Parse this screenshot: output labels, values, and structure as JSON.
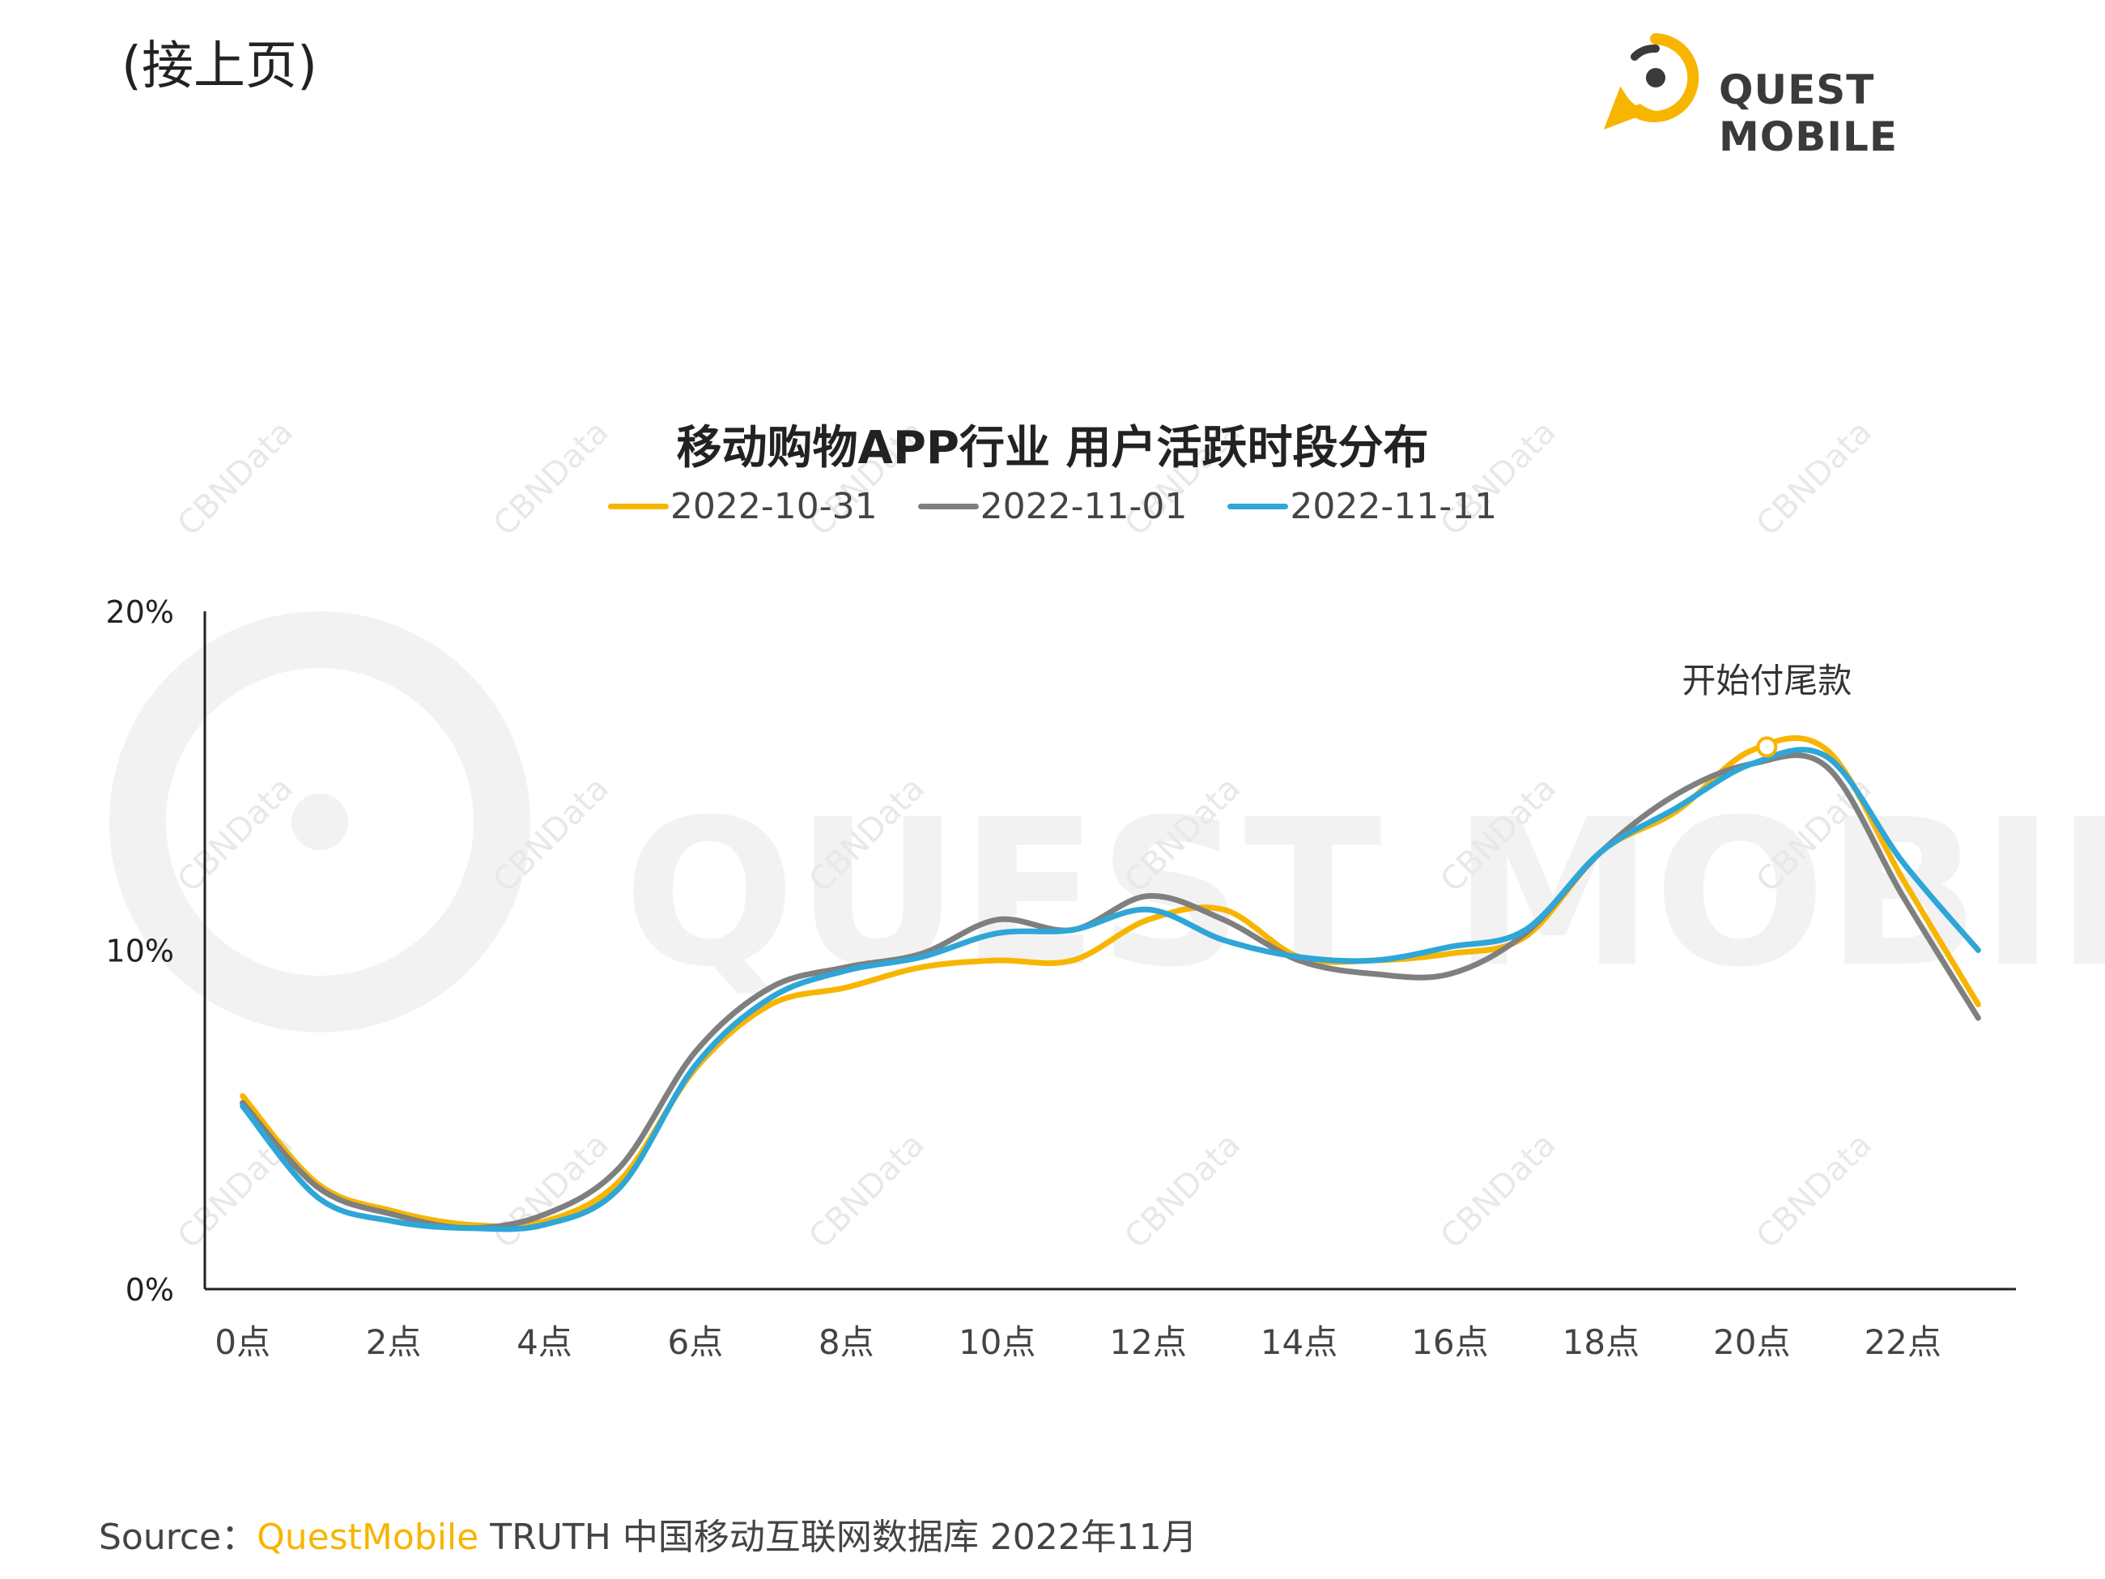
{
  "header": {
    "continued_label": "(接上页)",
    "logo_text": "QUEST MOBILE"
  },
  "watermark": {
    "text": "CBNData",
    "big_text": "QUEST MOBILE"
  },
  "colors": {
    "series_1": "#f7b500",
    "series_2": "#7f7f7f",
    "series_3": "#2ea6d8",
    "axis": "#222222",
    "logo_accent": "#f7b500"
  },
  "chart_data": {
    "type": "line",
    "title": "移动购物APP行业 用户活跃时段分布",
    "x": [
      0,
      1,
      2,
      3,
      4,
      5,
      6,
      7,
      8,
      9,
      10,
      11,
      12,
      13,
      14,
      15,
      16,
      17,
      18,
      19,
      20,
      21,
      22,
      23
    ],
    "x_tick_labels": [
      "0点",
      "2点",
      "4点",
      "6点",
      "8点",
      "10点",
      "12点",
      "14点",
      "16点",
      "18点",
      "20点",
      "22点"
    ],
    "x_tick_values": [
      0,
      2,
      4,
      6,
      8,
      10,
      12,
      14,
      16,
      18,
      20,
      22
    ],
    "y_tick_labels": [
      "0%",
      "10%",
      "20%"
    ],
    "y_tick_values": [
      0,
      10,
      20
    ],
    "ylim": [
      0,
      20
    ],
    "xlim": [
      -0.5,
      23.5
    ],
    "grid": false,
    "legend_position": "top",
    "series": [
      {
        "name": "2022-10-31",
        "values": [
          5.7,
          3.1,
          2.3,
          1.9,
          2.0,
          3.2,
          6.5,
          8.4,
          8.9,
          9.5,
          9.7,
          9.7,
          10.9,
          11.2,
          9.8,
          9.7,
          9.9,
          10.4,
          12.9,
          14.1,
          15.9,
          15.9,
          12.1,
          8.4
        ]
      },
      {
        "name": "2022-11-01",
        "values": [
          5.5,
          3.0,
          2.2,
          1.8,
          2.2,
          3.6,
          7.0,
          8.9,
          9.5,
          9.9,
          10.9,
          10.6,
          11.6,
          10.9,
          9.7,
          9.3,
          9.3,
          10.5,
          12.9,
          14.6,
          15.5,
          15.4,
          11.6,
          8.0
        ]
      },
      {
        "name": "2022-11-11",
        "values": [
          5.4,
          2.7,
          2.0,
          1.8,
          1.9,
          3.0,
          6.6,
          8.6,
          9.4,
          9.8,
          10.5,
          10.6,
          11.2,
          10.3,
          9.8,
          9.7,
          10.1,
          10.6,
          12.9,
          14.2,
          15.5,
          15.7,
          12.6,
          10.0
        ]
      }
    ],
    "annotation": {
      "text": "开始付尾款",
      "x": 20.2,
      "y": 16.0
    }
  },
  "footer": {
    "source_prefix": "Source：",
    "source_brand": "QuestMobile",
    "source_rest": " TRUTH 中国移动互联网数据库 2022年11月"
  }
}
